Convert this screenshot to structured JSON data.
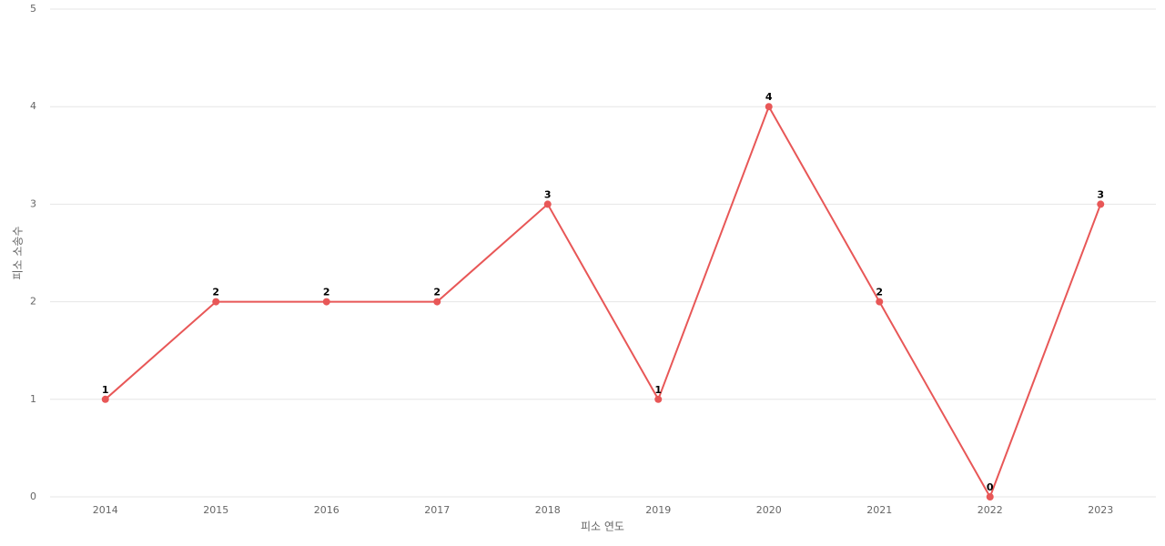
{
  "chart_data": {
    "type": "line",
    "x_label": "피소 연도",
    "y_label": "피소 소송수",
    "categories": [
      "2014",
      "2015",
      "2016",
      "2017",
      "2018",
      "2019",
      "2020",
      "2021",
      "2022",
      "2023"
    ],
    "values": [
      1,
      2,
      2,
      2,
      3,
      1,
      4,
      2,
      0,
      3
    ],
    "color": "#e85757",
    "ylim": [
      0,
      5
    ],
    "yticks": [
      0,
      1,
      2,
      3,
      4,
      5
    ],
    "grid": true,
    "data_labels": true
  }
}
